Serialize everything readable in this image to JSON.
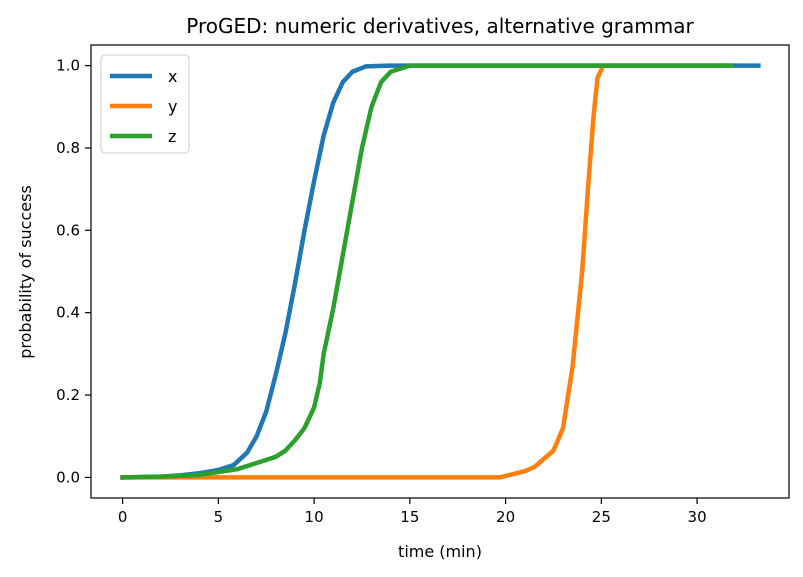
{
  "chart_data": {
    "type": "line",
    "title": "ProGED: numeric derivatives, alternative grammar",
    "xlabel": "time (min)",
    "ylabel": "probability of success",
    "xlim": [
      -1.65,
      34.8
    ],
    "ylim": [
      -0.05,
      1.05
    ],
    "xticks": [
      0,
      5,
      10,
      15,
      20,
      25,
      30
    ],
    "yticks": [
      0.0,
      0.2,
      0.4,
      0.6,
      0.8,
      1.0
    ],
    "ytick_labels": [
      "0.0",
      "0.2",
      "0.4",
      "0.6",
      "0.8",
      "1.0"
    ],
    "grid": false,
    "legend": "top-left",
    "series": [
      {
        "name": "x",
        "color": "#1f77b4",
        "points": [
          [
            0,
            0
          ],
          [
            2,
            0.002
          ],
          [
            3,
            0.005
          ],
          [
            4,
            0.01
          ],
          [
            5,
            0.018
          ],
          [
            5.8,
            0.03
          ],
          [
            6.5,
            0.06
          ],
          [
            7,
            0.1
          ],
          [
            7.5,
            0.16
          ],
          [
            8,
            0.25
          ],
          [
            8.5,
            0.35
          ],
          [
            9,
            0.47
          ],
          [
            9.5,
            0.6
          ],
          [
            10,
            0.72
          ],
          [
            10.5,
            0.83
          ],
          [
            11,
            0.91
          ],
          [
            11.5,
            0.96
          ],
          [
            12,
            0.985
          ],
          [
            12.7,
            0.998
          ],
          [
            14,
            1
          ],
          [
            20,
            1
          ],
          [
            33.2,
            1
          ]
        ]
      },
      {
        "name": "y",
        "color": "#ff7f0e",
        "points": [
          [
            0,
            0
          ],
          [
            5,
            0
          ],
          [
            10,
            0
          ],
          [
            15,
            0
          ],
          [
            19.7,
            0
          ],
          [
            20.3,
            0.007
          ],
          [
            21,
            0.015
          ],
          [
            21.5,
            0.025
          ],
          [
            22,
            0.045
          ],
          [
            22.5,
            0.065
          ],
          [
            23,
            0.12
          ],
          [
            23.5,
            0.27
          ],
          [
            24,
            0.5
          ],
          [
            24.3,
            0.7
          ],
          [
            24.6,
            0.88
          ],
          [
            24.8,
            0.97
          ],
          [
            25.1,
            1
          ],
          [
            28,
            1
          ],
          [
            31.8,
            1
          ]
        ]
      },
      {
        "name": "z",
        "color": "#2ca02c",
        "points": [
          [
            0,
            0
          ],
          [
            2,
            0.002
          ],
          [
            4,
            0.006
          ],
          [
            6,
            0.02
          ],
          [
            7,
            0.035
          ],
          [
            8,
            0.05
          ],
          [
            8.5,
            0.065
          ],
          [
            9,
            0.09
          ],
          [
            9.5,
            0.12
          ],
          [
            10,
            0.17
          ],
          [
            10.3,
            0.23
          ],
          [
            10.5,
            0.3
          ],
          [
            11,
            0.41
          ],
          [
            11.5,
            0.54
          ],
          [
            12,
            0.67
          ],
          [
            12.5,
            0.8
          ],
          [
            13,
            0.9
          ],
          [
            13.5,
            0.96
          ],
          [
            14,
            0.985
          ],
          [
            15,
            1
          ],
          [
            20,
            1
          ],
          [
            31.8,
            1
          ]
        ]
      }
    ]
  }
}
